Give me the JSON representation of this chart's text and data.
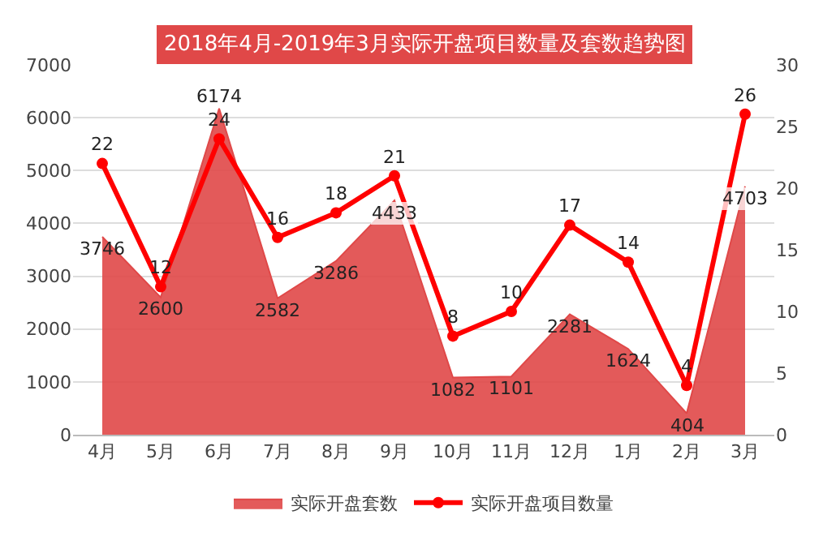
{
  "chart_data": {
    "type": "area",
    "title": "2018年4月-2019年3月实际开盘项目数量及套数趋势图",
    "categories": [
      "4月",
      "5月",
      "6月",
      "7月",
      "8月",
      "9月",
      "10月",
      "11月",
      "12月",
      "1月",
      "2月",
      "3月"
    ],
    "series": [
      {
        "name": "实际开盘套数",
        "color": "#e04848",
        "values": [
          3746,
          2600,
          6174,
          2582,
          3286,
          4433,
          1082,
          1101,
          2281,
          1624,
          404,
          4703
        ]
      },
      {
        "name": "实际开盘项目数量",
        "type": "line",
        "axis": "y2",
        "marker": "circle",
        "color": "#ff0000",
        "values": [
          22,
          12,
          24,
          16,
          18,
          21,
          8,
          10,
          17,
          14,
          4,
          26
        ]
      }
    ],
    "ylim": [
      0,
      7000
    ],
    "yticks": [
      0,
      1000,
      2000,
      3000,
      4000,
      5000,
      6000,
      7000
    ],
    "y2lim": [
      0,
      30
    ],
    "y2ticks": [
      0,
      5,
      10,
      15,
      20,
      25,
      30
    ],
    "data_labels": true,
    "grid": "y",
    "legend": "bottom",
    "line_style": "solid"
  }
}
